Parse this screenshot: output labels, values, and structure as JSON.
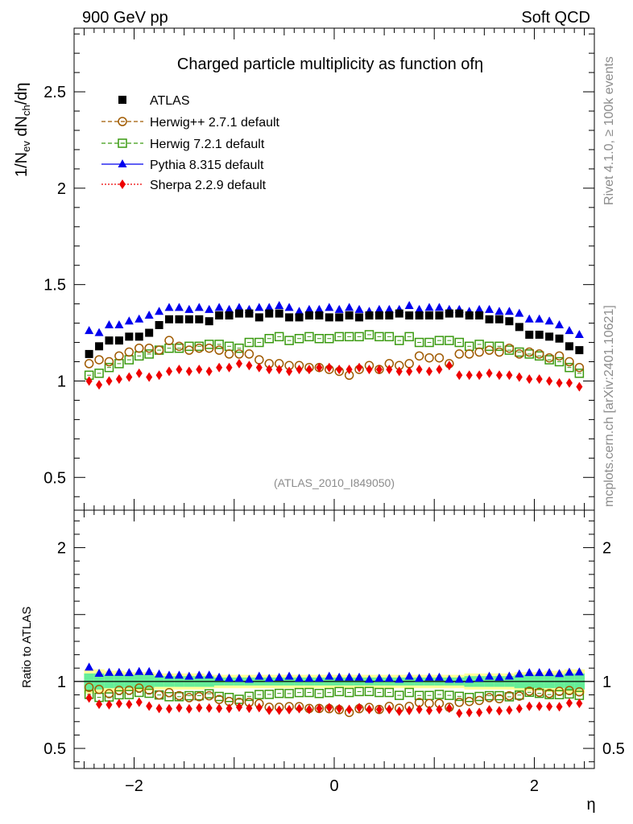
{
  "header": {
    "left": "900 GeV pp",
    "right": "Soft QCD"
  },
  "side_texts": {
    "rivet": "Rivet 4.1.0, ≥ 100k events",
    "mcplots": "mcplots.cern.ch [arXiv:2401.10621]"
  },
  "chart_data": {
    "type": "scatter",
    "title": "Charged particle multiplicity as function ofη",
    "analysis_label": "(ATLAS_2010_I849050)",
    "xlabel": "η",
    "ylabel_main": {
      "base": "1/N",
      "sub1": "ev",
      "mid": " dN",
      "sub2": "ch",
      "end": "/dη"
    },
    "ylabel_ratio": "Ratio to ATLAS",
    "xlim": [
      -2.6,
      2.6
    ],
    "ylim_main": [
      0.33,
      2.83
    ],
    "ylim_ratio": [
      0.35,
      2.28
    ],
    "x_ticks": [
      {
        "v": -2,
        "label": "−2"
      },
      {
        "v": 0,
        "label": "0"
      },
      {
        "v": 2,
        "label": "2"
      }
    ],
    "y_ticks_main": [
      {
        "v": 0.5,
        "label": "0.5"
      },
      {
        "v": 1,
        "label": "1"
      },
      {
        "v": 1.5,
        "label": "1.5"
      },
      {
        "v": 2,
        "label": "2"
      },
      {
        "v": 2.5,
        "label": "2.5"
      }
    ],
    "y_ticks_ratio": [
      {
        "v": 0.5,
        "label": "0.5"
      },
      {
        "v": 1,
        "label": "1"
      },
      {
        "v": 2,
        "label": "2"
      }
    ],
    "x": [
      -2.45,
      -2.35,
      -2.25,
      -2.15,
      -2.05,
      -1.95,
      -1.85,
      -1.75,
      -1.65,
      -1.55,
      -1.45,
      -1.35,
      -1.25,
      -1.15,
      -1.05,
      -0.95,
      -0.85,
      -0.75,
      -0.65,
      -0.55,
      -0.45,
      -0.35,
      -0.25,
      -0.15,
      -0.05,
      0.05,
      0.15,
      0.25,
      0.35,
      0.45,
      0.55,
      0.65,
      0.75,
      0.85,
      0.95,
      1.05,
      1.15,
      1.25,
      1.35,
      1.45,
      1.55,
      1.65,
      1.75,
      1.85,
      1.95,
      2.05,
      2.15,
      2.25,
      2.35,
      2.45
    ],
    "series": [
      {
        "name": "ATLAS",
        "marker": "square-filled",
        "color": "#000000",
        "values": [
          1.14,
          1.18,
          1.21,
          1.21,
          1.23,
          1.23,
          1.25,
          1.29,
          1.32,
          1.32,
          1.32,
          1.32,
          1.31,
          1.34,
          1.34,
          1.35,
          1.35,
          1.33,
          1.35,
          1.35,
          1.33,
          1.33,
          1.34,
          1.34,
          1.33,
          1.33,
          1.34,
          1.33,
          1.34,
          1.34,
          1.34,
          1.35,
          1.34,
          1.34,
          1.34,
          1.34,
          1.35,
          1.35,
          1.34,
          1.34,
          1.32,
          1.32,
          1.31,
          1.28,
          1.24,
          1.24,
          1.23,
          1.22,
          1.18,
          1.16
        ]
      },
      {
        "name": "Herwig++ 2.7.1 default",
        "marker": "circle-open",
        "color": "#a05a00",
        "line": "dashed",
        "values": [
          1.09,
          1.11,
          1.1,
          1.13,
          1.15,
          1.17,
          1.17,
          1.16,
          1.21,
          1.18,
          1.16,
          1.17,
          1.17,
          1.16,
          1.14,
          1.14,
          1.14,
          1.11,
          1.09,
          1.09,
          1.08,
          1.08,
          1.07,
          1.07,
          1.06,
          1.05,
          1.03,
          1.06,
          1.08,
          1.06,
          1.09,
          1.08,
          1.09,
          1.13,
          1.12,
          1.12,
          1.09,
          1.14,
          1.14,
          1.15,
          1.16,
          1.15,
          1.17,
          1.14,
          1.15,
          1.14,
          1.12,
          1.13,
          1.1,
          1.07
        ]
      },
      {
        "name": "Herwig 7.2.1 default",
        "marker": "square-open",
        "color": "#3a9a10",
        "line": "dashed",
        "values": [
          1.03,
          1.04,
          1.07,
          1.09,
          1.11,
          1.13,
          1.14,
          1.16,
          1.17,
          1.17,
          1.18,
          1.18,
          1.19,
          1.19,
          1.18,
          1.17,
          1.2,
          1.2,
          1.22,
          1.23,
          1.21,
          1.22,
          1.23,
          1.22,
          1.22,
          1.23,
          1.23,
          1.23,
          1.24,
          1.23,
          1.23,
          1.21,
          1.23,
          1.2,
          1.2,
          1.21,
          1.21,
          1.2,
          1.18,
          1.19,
          1.18,
          1.18,
          1.16,
          1.15,
          1.14,
          1.13,
          1.11,
          1.1,
          1.07,
          1.04
        ]
      },
      {
        "name": "Pythia 8.315 default",
        "marker": "triangle-filled",
        "color": "#0000ee",
        "line": "solid",
        "values": [
          1.26,
          1.25,
          1.29,
          1.29,
          1.31,
          1.32,
          1.34,
          1.36,
          1.38,
          1.38,
          1.37,
          1.38,
          1.37,
          1.38,
          1.37,
          1.38,
          1.37,
          1.38,
          1.38,
          1.39,
          1.38,
          1.36,
          1.37,
          1.37,
          1.38,
          1.37,
          1.38,
          1.37,
          1.36,
          1.37,
          1.37,
          1.37,
          1.39,
          1.37,
          1.38,
          1.38,
          1.37,
          1.37,
          1.36,
          1.37,
          1.37,
          1.36,
          1.36,
          1.35,
          1.32,
          1.32,
          1.31,
          1.29,
          1.26,
          1.24
        ]
      },
      {
        "name": "Sherpa 2.2.9 default",
        "marker": "diamond-filled",
        "color": "#ee0000",
        "line": "dotted",
        "values": [
          1.0,
          0.98,
          1.0,
          1.01,
          1.02,
          1.04,
          1.02,
          1.03,
          1.05,
          1.06,
          1.05,
          1.06,
          1.05,
          1.07,
          1.07,
          1.09,
          1.08,
          1.07,
          1.06,
          1.06,
          1.05,
          1.06,
          1.06,
          1.07,
          1.07,
          1.06,
          1.06,
          1.07,
          1.06,
          1.06,
          1.06,
          1.05,
          1.05,
          1.06,
          1.05,
          1.06,
          1.08,
          1.03,
          1.03,
          1.03,
          1.04,
          1.03,
          1.03,
          1.02,
          1.01,
          1.01,
          1.0,
          0.99,
          0.99,
          0.97
        ]
      }
    ],
    "ratio_bands": {
      "stat_half_width": [
        0.06,
        0.06,
        0.05,
        0.05,
        0.05,
        0.05,
        0.05,
        0.04,
        0.04,
        0.04,
        0.04,
        0.04,
        0.04,
        0.03,
        0.03,
        0.03,
        0.03,
        0.03,
        0.03,
        0.03,
        0.03,
        0.03,
        0.03,
        0.03,
        0.03,
        0.03,
        0.03,
        0.03,
        0.03,
        0.03,
        0.03,
        0.03,
        0.03,
        0.03,
        0.03,
        0.03,
        0.03,
        0.03,
        0.04,
        0.04,
        0.04,
        0.04,
        0.04,
        0.05,
        0.05,
        0.05,
        0.05,
        0.05,
        0.06,
        0.06
      ],
      "total_half_width": [
        0.09,
        0.09,
        0.08,
        0.08,
        0.07,
        0.07,
        0.07,
        0.06,
        0.06,
        0.06,
        0.06,
        0.06,
        0.05,
        0.05,
        0.05,
        0.05,
        0.05,
        0.05,
        0.05,
        0.05,
        0.05,
        0.05,
        0.05,
        0.05,
        0.05,
        0.05,
        0.05,
        0.05,
        0.05,
        0.05,
        0.05,
        0.05,
        0.05,
        0.05,
        0.05,
        0.05,
        0.05,
        0.05,
        0.06,
        0.06,
        0.06,
        0.06,
        0.06,
        0.07,
        0.07,
        0.07,
        0.08,
        0.08,
        0.09,
        0.09
      ],
      "stat_color": "#66ee99",
      "total_color": "#ffff99"
    }
  }
}
